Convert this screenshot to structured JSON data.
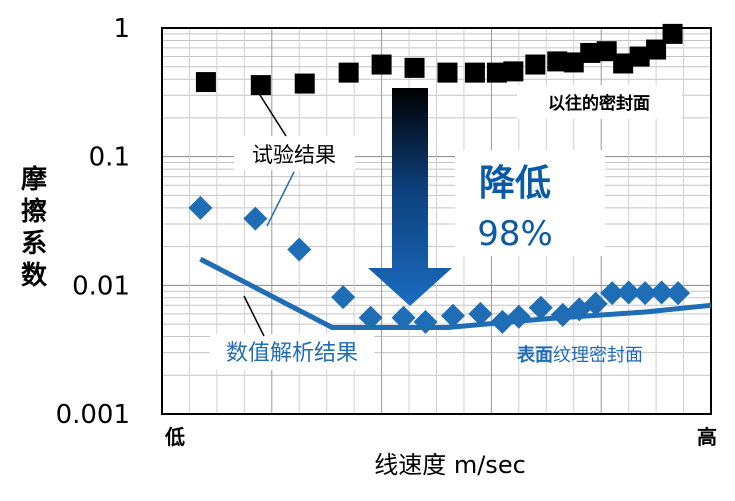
{
  "chart_data": {
    "type": "scatter",
    "title": "",
    "xlabel": "线速度 m/sec",
    "ylabel": "摩擦系数",
    "x_scale": "relative (低 → 高)",
    "x_tick_labels": [
      "低",
      "高"
    ],
    "xlim": [
      0,
      100
    ],
    "y_scale": "log",
    "ylim": [
      0.001,
      1
    ],
    "y_tick_labels": [
      "1",
      "0.1",
      "0.01",
      "0.001"
    ],
    "y_ticks": [
      1,
      0.1,
      0.01,
      0.001
    ],
    "grid": "on",
    "series": [
      {
        "name": "以往的密封面",
        "marker": "square",
        "color": "#000000",
        "points": [
          {
            "x": 8,
            "y": 0.38
          },
          {
            "x": 18,
            "y": 0.36
          },
          {
            "x": 26,
            "y": 0.37
          },
          {
            "x": 34,
            "y": 0.45
          },
          {
            "x": 40,
            "y": 0.52
          },
          {
            "x": 46,
            "y": 0.49
          },
          {
            "x": 52,
            "y": 0.45
          },
          {
            "x": 57,
            "y": 0.45
          },
          {
            "x": 61,
            "y": 0.45
          },
          {
            "x": 64,
            "y": 0.46
          },
          {
            "x": 68,
            "y": 0.52
          },
          {
            "x": 72,
            "y": 0.55
          },
          {
            "x": 75,
            "y": 0.54
          },
          {
            "x": 78,
            "y": 0.64
          },
          {
            "x": 81,
            "y": 0.66
          },
          {
            "x": 84,
            "y": 0.53
          },
          {
            "x": 87,
            "y": 0.6
          },
          {
            "x": 90,
            "y": 0.68
          },
          {
            "x": 93,
            "y": 0.9
          }
        ]
      },
      {
        "name": "试验结果",
        "marker": "diamond",
        "color": "#1f6db5",
        "points": [
          {
            "x": 7,
            "y": 0.04
          },
          {
            "x": 17,
            "y": 0.033
          },
          {
            "x": 25,
            "y": 0.019
          },
          {
            "x": 33,
            "y": 0.0081
          },
          {
            "x": 38,
            "y": 0.0056
          },
          {
            "x": 44,
            "y": 0.0056
          },
          {
            "x": 48,
            "y": 0.0052
          },
          {
            "x": 53,
            "y": 0.0058
          },
          {
            "x": 58,
            "y": 0.006
          },
          {
            "x": 62,
            "y": 0.0052
          },
          {
            "x": 65,
            "y": 0.0057
          },
          {
            "x": 69,
            "y": 0.0067
          },
          {
            "x": 73,
            "y": 0.0059
          },
          {
            "x": 76,
            "y": 0.0065
          },
          {
            "x": 79,
            "y": 0.0072
          },
          {
            "x": 82,
            "y": 0.0087
          },
          {
            "x": 85,
            "y": 0.0088
          },
          {
            "x": 88,
            "y": 0.0087
          },
          {
            "x": 91,
            "y": 0.0088
          },
          {
            "x": 94,
            "y": 0.0087
          }
        ]
      },
      {
        "name": "数值解析结果",
        "type": "line",
        "color": "#1f6db5",
        "points": [
          {
            "x": 7,
            "y": 0.016
          },
          {
            "x": 31,
            "y": 0.0047
          },
          {
            "x": 52,
            "y": 0.0047
          },
          {
            "x": 70,
            "y": 0.0055
          },
          {
            "x": 88,
            "y": 0.0062
          },
          {
            "x": 100,
            "y": 0.007
          }
        ]
      }
    ],
    "annotations": {
      "conventional_surface": "以往的密封面",
      "test_results": "试验结果",
      "reduction_label": "降低",
      "reduction_value": "98%",
      "numerical_results": "数值解析结果",
      "textured_surface_bold": "表面",
      "textured_surface_rest": "纹理密封面"
    }
  },
  "colors": {
    "blue": "#1f6db5",
    "dark_blue": "#0b5aa6",
    "black": "#000000",
    "grid": "#aaaaaa",
    "arrow_top": "#000000",
    "arrow_bottom": "#1a6cc0"
  }
}
